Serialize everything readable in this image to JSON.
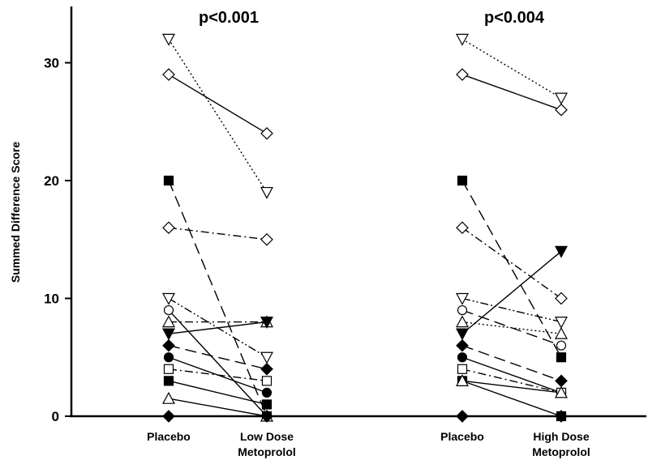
{
  "chart_data": {
    "type": "line",
    "ylabel": "Summed Difference Score",
    "ylim": [
      0,
      35
    ],
    "yticks": [
      0,
      10,
      20,
      30
    ],
    "grid": false,
    "panels": [
      {
        "annotation": "p<0.001",
        "categories": [
          "Placebo",
          "Low Dose\nMetoprolol"
        ],
        "series": [
          {
            "marker": "triangle-down-open",
            "dash": "dot",
            "values": [
              32,
              19
            ]
          },
          {
            "marker": "diamond-open",
            "dash": "solid",
            "values": [
              29,
              24
            ]
          },
          {
            "marker": "square-filled",
            "dash": "long-dash",
            "values": [
              20,
              0
            ]
          },
          {
            "marker": "diamond-open",
            "dash": "dash-dot",
            "values": [
              16,
              15
            ]
          },
          {
            "marker": "triangle-down-open",
            "dash": "dash-dot-dot",
            "values": [
              10,
              5
            ]
          },
          {
            "marker": "circle-open",
            "dash": "solid",
            "values": [
              9,
              0
            ]
          },
          {
            "marker": "triangle-up-open",
            "dash": "dash-dot",
            "values": [
              8,
              8
            ]
          },
          {
            "marker": "triangle-down-filled",
            "dash": "solid",
            "values": [
              7,
              8
            ]
          },
          {
            "marker": "diamond-filled",
            "dash": "long-dash",
            "values": [
              6,
              4
            ]
          },
          {
            "marker": "circle-filled",
            "dash": "solid",
            "values": [
              5,
              2
            ]
          },
          {
            "marker": "square-open",
            "dash": "dash-dot",
            "values": [
              4,
              3
            ]
          },
          {
            "marker": "square-filled",
            "dash": "solid",
            "values": [
              3,
              1
            ]
          },
          {
            "marker": "triangle-up-open",
            "dash": "solid",
            "values": [
              1.5,
              0
            ]
          },
          {
            "marker": "diamond-filled",
            "dash": "solid",
            "values": [
              0,
              0
            ]
          }
        ]
      },
      {
        "annotation": "p<0.004",
        "categories": [
          "Placebo",
          "High Dose\nMetoprolol"
        ],
        "series": [
          {
            "marker": "triangle-down-open",
            "dash": "dot",
            "values": [
              32,
              27
            ]
          },
          {
            "marker": "diamond-open",
            "dash": "solid",
            "values": [
              29,
              26
            ]
          },
          {
            "marker": "square-filled",
            "dash": "long-dash",
            "values": [
              20,
              5
            ]
          },
          {
            "marker": "diamond-open",
            "dash": "dash-dot",
            "values": [
              16,
              10
            ]
          },
          {
            "marker": "triangle-down-open",
            "dash": "dash-dot-dot",
            "values": [
              10,
              8
            ]
          },
          {
            "marker": "circle-open",
            "dash": "long-dash",
            "values": [
              9,
              6
            ]
          },
          {
            "marker": "triangle-up-open",
            "dash": "dot",
            "values": [
              8,
              7
            ]
          },
          {
            "marker": "triangle-down-filled",
            "dash": "solid",
            "values": [
              7,
              14
            ]
          },
          {
            "marker": "diamond-filled",
            "dash": "long-dash",
            "values": [
              6,
              3
            ]
          },
          {
            "marker": "circle-filled",
            "dash": "solid",
            "values": [
              5,
              2
            ]
          },
          {
            "marker": "square-open",
            "dash": "dash-dot",
            "values": [
              4,
              2
            ]
          },
          {
            "marker": "square-filled",
            "dash": "solid",
            "values": [
              3,
              0
            ]
          },
          {
            "marker": "triangle-up-open",
            "dash": "solid",
            "values": [
              3,
              2
            ]
          },
          {
            "marker": "diamond-filled",
            "dash": "solid",
            "values": [
              0,
              0
            ]
          }
        ]
      }
    ]
  }
}
